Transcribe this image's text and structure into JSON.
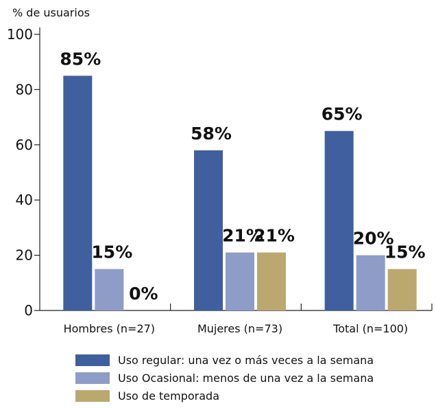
{
  "chart_data": {
    "type": "bar",
    "y_label": "% de usuarios",
    "categories": [
      "Hombres (n=27)",
      "Mujeres (n=73)",
      "Total (n=100)"
    ],
    "series": [
      {
        "name": "Uso regular: una vez o más veces a la semana",
        "color": "#3f5f9e",
        "values": [
          85,
          58,
          65
        ],
        "value_labels": [
          "85%",
          "58%",
          "65%"
        ]
      },
      {
        "name": "Uso Ocasional: menos de una vez a la semana",
        "color": "#8e9cc8",
        "values": [
          15,
          21,
          20
        ],
        "value_labels": [
          "15%",
          "21%",
          "20%"
        ]
      },
      {
        "name": "Uso de temporada",
        "color": "#bba86f",
        "values": [
          0,
          21,
          15
        ],
        "value_labels": [
          "0%",
          "21%",
          "15%"
        ]
      }
    ],
    "ylim": [
      0,
      100
    ],
    "yticks": [
      0,
      20,
      40,
      60,
      80,
      100
    ],
    "grid": false,
    "legend": "bottom"
  }
}
